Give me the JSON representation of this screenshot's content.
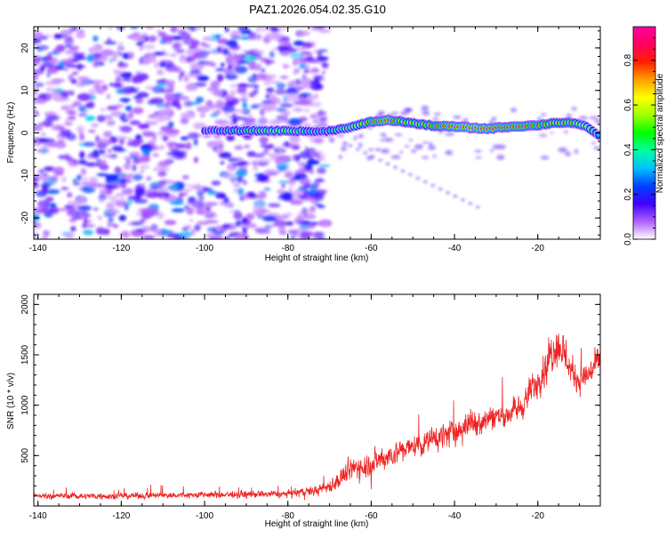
{
  "title": "PAZ1.2026.054.02.35.G10",
  "chart_data": [
    {
      "type": "heatmap",
      "name": "spectrogram",
      "xlabel": "Height of straight line (km)",
      "ylabel": "Frequency (Hz)",
      "xlim": [
        -141,
        -5
      ],
      "ylim": [
        -25,
        25
      ],
      "x_ticks": [
        "-140",
        "-120",
        "-100",
        "-80",
        "-60",
        "-40",
        "-20"
      ],
      "y_ticks": [
        "20",
        "10",
        "0",
        "-10",
        "-20"
      ],
      "colorbar": {
        "label": "Normalized spectral amplitude",
        "range": [
          0,
          0.95
        ],
        "ticks": [
          "0.0",
          "0.2",
          "0.4",
          "0.6",
          "0.8"
        ],
        "colors": [
          "#ffffff",
          "#b060ff",
          "#4000ff",
          "#0040ff",
          "#00c0ff",
          "#00ffa0",
          "#00ff00",
          "#a0ff00",
          "#ffff00",
          "#ffa000",
          "#ff2000",
          "#ff0060",
          "#ff00a0"
        ]
      },
      "ridge": {
        "description_points_x": [
          -100,
          -90,
          -80,
          -72,
          -68,
          -64,
          -60,
          -56,
          -52,
          -48,
          -44,
          -40,
          -36,
          -32,
          -28,
          -24,
          -20,
          -16,
          -12,
          -8,
          -5
        ],
        "description_points_y": [
          0.5,
          0.5,
          0.5,
          0.3,
          0.8,
          1.6,
          2.6,
          3.0,
          2.6,
          2.0,
          1.6,
          1.5,
          1.2,
          1.0,
          1.4,
          1.6,
          1.8,
          2.4,
          2.4,
          1.4,
          -1.0
        ],
        "amplitudes": [
          0.3,
          0.5,
          0.6,
          0.4,
          0.5,
          0.6,
          0.8,
          0.9,
          0.7,
          0.7,
          0.8,
          0.9,
          0.95,
          0.9,
          0.85,
          0.85,
          0.8,
          0.7,
          0.75,
          0.6,
          0.3
        ]
      }
    },
    {
      "type": "line",
      "name": "snr",
      "xlabel": "Height of straight line (km)",
      "ylabel": "SNR (10 * v/v)",
      "xlim": [
        -141,
        -5
      ],
      "ylim": [
        0,
        2100
      ],
      "x_ticks": [
        "-140",
        "-120",
        "-100",
        "-80",
        "-60",
        "-40",
        "-20"
      ],
      "y_ticks": [
        "2000",
        "1500",
        "1000",
        "500"
      ],
      "color": "#ee2222",
      "envelope": {
        "x": [
          -141,
          -120,
          -100,
          -80,
          -72,
          -68,
          -64,
          -60,
          -56,
          -52,
          -48,
          -44,
          -40,
          -36,
          -32,
          -28,
          -24,
          -20,
          -18,
          -16,
          -14,
          -12,
          -10,
          -8,
          -5
        ],
        "mean": [
          100,
          100,
          110,
          120,
          160,
          250,
          380,
          420,
          500,
          560,
          620,
          680,
          740,
          820,
          880,
          900,
          980,
          1250,
          1400,
          1600,
          1550,
          1350,
          1250,
          1300,
          1450
        ],
        "spread": [
          60,
          60,
          70,
          70,
          110,
          180,
          260,
          260,
          250,
          240,
          230,
          250,
          280,
          280,
          270,
          250,
          260,
          320,
          380,
          450,
          420,
          350,
          300,
          300,
          300
        ]
      }
    }
  ]
}
